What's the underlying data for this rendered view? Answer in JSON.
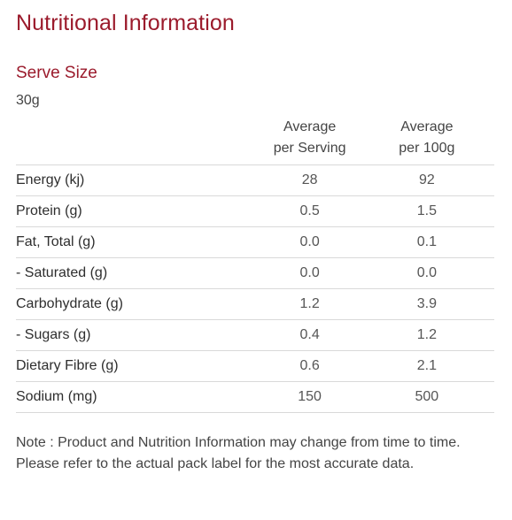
{
  "title": "Nutritional Information",
  "serve": {
    "heading": "Serve Size",
    "value": "30g"
  },
  "table": {
    "headers": {
      "per_serving_line1": "Average",
      "per_serving_line2": "per Serving",
      "per_100g_line1": "Average",
      "per_100g_line2": "per 100g"
    },
    "rows": [
      {
        "label": "Energy (kj)",
        "per_serving": "28",
        "per_100g": "92"
      },
      {
        "label": "Protein (g)",
        "per_serving": "0.5",
        "per_100g": "1.5"
      },
      {
        "label": "Fat, Total (g)",
        "per_serving": "0.0",
        "per_100g": "0.1"
      },
      {
        "label": "- Saturated (g)",
        "per_serving": "0.0",
        "per_100g": "0.0"
      },
      {
        "label": "Carbohydrate (g)",
        "per_serving": "1.2",
        "per_100g": "3.9"
      },
      {
        "label": "- Sugars (g)",
        "per_serving": "0.4",
        "per_100g": "1.2"
      },
      {
        "label": "Dietary Fibre (g)",
        "per_serving": "0.6",
        "per_100g": "2.1"
      },
      {
        "label": "Sodium (mg)",
        "per_serving": "150",
        "per_100g": "500"
      }
    ]
  },
  "note": "Note : Product and Nutrition Information may change from time to time. Please refer to the actual pack label for the most accurate data.",
  "colors": {
    "accent": "#9b1b2c",
    "text": "#333333",
    "divider": "#d9d9d9"
  }
}
